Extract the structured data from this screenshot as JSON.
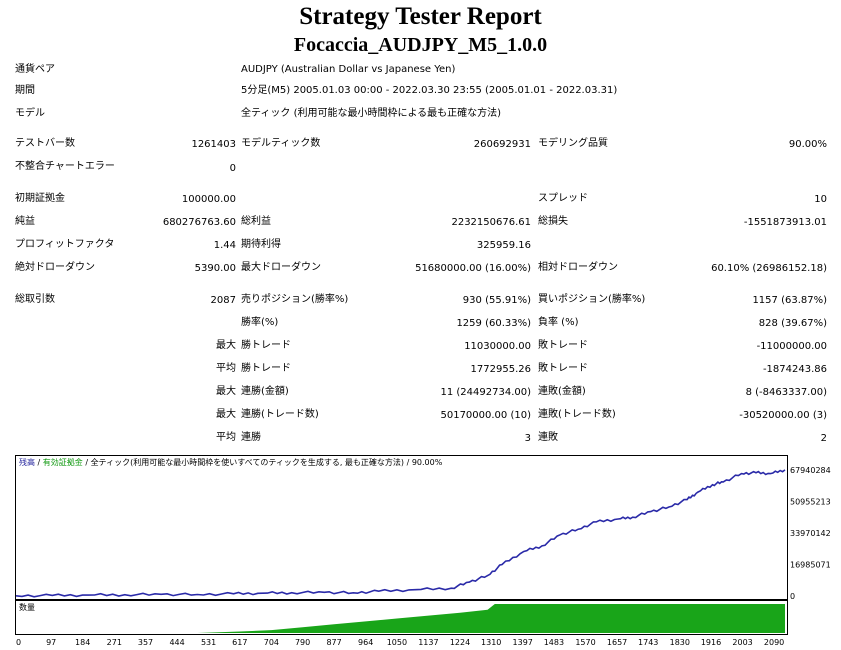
{
  "report": {
    "title": "Strategy Tester Report",
    "subtitle": "Focaccia_AUDJPY_M5_1.0.0"
  },
  "info": [
    {
      "label": "通貨ペア",
      "value": "AUDJPY (Australian Dollar vs Japanese Yen)"
    },
    {
      "label": "期間",
      "value": "5分足(M5) 2005.01.03 00:00 - 2022.03.30 23:55 (2005.01.01 - 2022.03.31)"
    },
    {
      "label": "モデル",
      "value": "全ティック (利用可能な最小時間枠による最も正確な方法)"
    }
  ],
  "bars_row": {
    "test_bars_label": "テストバー数",
    "test_bars": "1261403",
    "model_ticks_label": "モデルティック数",
    "model_ticks": "260692931",
    "model_quality_label": "モデリング品質",
    "model_quality": "90.00%"
  },
  "mismatch": {
    "label": "不整合チャートエラー",
    "value": "0"
  },
  "deposit": {
    "label": "初期証拠金",
    "value": "100000.00",
    "spread_label": "スプレッド",
    "spread": "10"
  },
  "profit_row": {
    "net_label": "純益",
    "net": "680276763.60",
    "gross_profit_label": "総利益",
    "gross_profit": "2232150676.61",
    "gross_loss_label": "総損失",
    "gross_loss": "-1551873913.01"
  },
  "pf_row": {
    "pf_label": "プロフィットファクタ",
    "pf": "1.44",
    "expected_label": "期待利得",
    "expected": "325959.16"
  },
  "dd_row": {
    "abs_label": "絶対ドローダウン",
    "abs": "5390.00",
    "max_label": "最大ドローダウン",
    "max": "51680000.00 (16.00%)",
    "rel_label": "相対ドローダウン",
    "rel": "60.10% (26986152.18)"
  },
  "trades": {
    "total_label": "総取引数",
    "total": "2087",
    "short_label": "売りポジション(勝率%)",
    "short": "930 (55.91%)",
    "long_label": "買いポジション(勝率%)",
    "long": "1157 (63.87%)",
    "win_label": "勝率(%)",
    "win": "1259 (60.33%)",
    "loss_label": "負率 (%)",
    "loss": "828 (39.67%)"
  },
  "stats": [
    {
      "prefix": "最大",
      "a_label": "勝トレード",
      "a": "11030000.00",
      "b_label": "敗トレード",
      "b": "-11000000.00"
    },
    {
      "prefix": "平均",
      "a_label": "勝トレード",
      "a": "1772955.26",
      "b_label": "敗トレード",
      "b": "-1874243.86"
    },
    {
      "prefix": "最大",
      "a_label": "連勝(金額)",
      "a": "11 (24492734.00)",
      "b_label": "連敗(金額)",
      "b": "8 (-8463337.00)"
    },
    {
      "prefix": "最大",
      "a_label": "連勝(トレード数)",
      "a": "50170000.00 (10)",
      "b_label": "連敗(トレード数)",
      "b": "-30520000.00 (3)"
    },
    {
      "prefix": "平均",
      "a_label": "連勝",
      "a": "3",
      "b_label": "連敗",
      "b": "2"
    }
  ],
  "chart_legend": {
    "balance": "残高",
    "sep1": " / ",
    "equity": "有効証拠金",
    "sep2": " / ",
    "rest": "全ティック(利用可能な最小時間枠を使いすべてのティックを生成する, 最も正確な方法) / 90.00%",
    "volume": "数量"
  },
  "colors": {
    "balance": "#2a2aa8",
    "equity": "#1ea01e",
    "volume": "#19a519",
    "legend_balance": "#1c1c9a",
    "legend_equity": "#119911"
  },
  "chart_data": {
    "type": "line",
    "series": [
      {
        "name": "残高",
        "x": [
          0,
          100,
          200,
          300,
          400,
          500,
          600,
          680,
          760,
          850,
          930,
          1000,
          1100,
          1200,
          1250,
          1300,
          1340,
          1400,
          1450,
          1500,
          1550,
          1600,
          1660,
          1700,
          1750,
          1800,
          1850,
          1880,
          1920,
          1950,
          2000,
          2040,
          2080,
          2120
        ],
        "values": [
          100000,
          300000,
          500000,
          700000,
          900000,
          800000,
          1200000,
          1500000,
          1800000,
          2000000,
          1700000,
          2600000,
          3400000,
          4200000,
          7500000,
          11000000,
          17000000,
          24000000,
          27000000,
          33000000,
          36000000,
          40000000,
          41500000,
          42500000,
          45500000,
          48000000,
          52000000,
          56000000,
          60000000,
          61500000,
          66000000,
          66500000,
          66000000,
          68000000
        ]
      }
    ],
    "volume": {
      "x": [
        0,
        500,
        617,
        704,
        790,
        877,
        964,
        1050,
        1137,
        1224,
        1300,
        1320,
        2120
      ],
      "values": [
        0,
        0,
        0.05,
        0.1,
        0.2,
        0.3,
        0.4,
        0.5,
        0.6,
        0.7,
        0.8,
        1.0,
        1.0
      ]
    },
    "y_ticks": [
      "67940284",
      "50955213",
      "33970142",
      "16985071",
      "0"
    ],
    "x_ticks": [
      "0",
      "97",
      "184",
      "271",
      "357",
      "444",
      "531",
      "617",
      "704",
      "790",
      "877",
      "964",
      "1050",
      "1137",
      "1224",
      "1310",
      "1397",
      "1483",
      "1570",
      "1657",
      "1743",
      "1830",
      "1916",
      "2003",
      "2090"
    ],
    "ylim": [
      0,
      67940284
    ],
    "xlim": [
      0,
      2120
    ],
    "ylabel": "",
    "xlabel": "",
    "title": ""
  }
}
